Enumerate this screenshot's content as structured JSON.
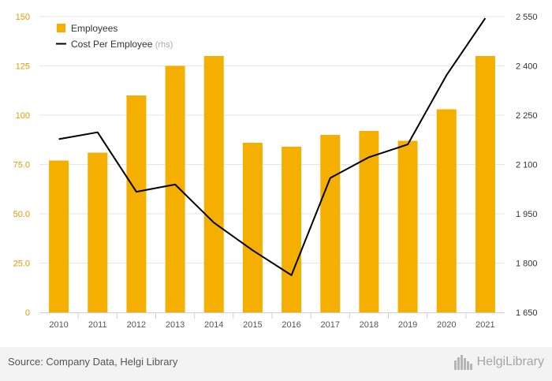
{
  "chart_data": {
    "type": "bar+line",
    "categories": [
      "2010",
      "2011",
      "2012",
      "2013",
      "2014",
      "2015",
      "2016",
      "2017",
      "2018",
      "2019",
      "2020",
      "2021"
    ],
    "series": [
      {
        "name": "Employees",
        "type": "bar",
        "axis": "left",
        "values": [
          77,
          81,
          110,
          125,
          130,
          86,
          84,
          90,
          92,
          87,
          103,
          130
        ]
      },
      {
        "name": "Cost Per Employee",
        "name_suffix": "(rhs)",
        "type": "line",
        "axis": "right",
        "values": [
          2177,
          2198,
          2017,
          2039,
          1923,
          1839,
          1763,
          2059,
          2122,
          2161,
          2372,
          2545
        ]
      }
    ],
    "left_axis": {
      "ticks": [
        "0",
        "25.0",
        "50.0",
        "75.0",
        "100",
        "125",
        "150"
      ],
      "ylim": [
        0,
        150
      ]
    },
    "right_axis": {
      "ticks": [
        "1 650",
        "1 800",
        "1 950",
        "2 100",
        "2 250",
        "2 400",
        "2 550"
      ],
      "ylim": [
        1650,
        2550
      ]
    },
    "legend_position": "top-left",
    "colors": {
      "bar": "#F5AF00",
      "line": "#000000",
      "axis_text_left": "#e09b00",
      "axis_text_right": "#333333",
      "grid": "#e6e6e6"
    }
  },
  "footer": {
    "source": "Source: Company Data, Helgi Library",
    "brand": "HelgiLibrary",
    "brand_icon": "helgi-library-logo-icon"
  }
}
